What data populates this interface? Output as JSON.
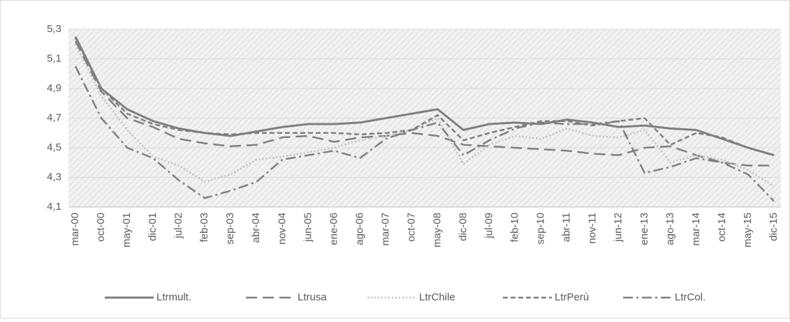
{
  "chart_data": {
    "type": "line",
    "categories": [
      "mar-00",
      "oct-00",
      "may-01",
      "dic-01",
      "jul-02",
      "feb-03",
      "sep-03",
      "abr-04",
      "nov-04",
      "jun-05",
      "ene-06",
      "ago-06",
      "mar-07",
      "oct-07",
      "may-08",
      "dic-08",
      "jul-09",
      "feb-10",
      "sep-10",
      "abr-11",
      "nov-11",
      "jun-12",
      "ene-13",
      "ago-13",
      "mar-14",
      "oct-14",
      "may-15",
      "dic-15"
    ],
    "series": [
      {
        "name": "Ltrmult.",
        "color": "#7f7f7f",
        "dash": "none",
        "width": 3,
        "values": [
          5.25,
          4.9,
          4.76,
          4.68,
          4.63,
          4.6,
          4.58,
          4.61,
          4.64,
          4.66,
          4.66,
          4.67,
          4.7,
          4.73,
          4.76,
          4.62,
          4.66,
          4.67,
          4.66,
          4.69,
          4.67,
          4.64,
          4.65,
          4.63,
          4.62,
          4.56,
          4.5,
          4.45
        ]
      },
      {
        "name": "Ltrusa",
        "color": "#7f7f7f",
        "dash": "16 8",
        "width": 2.5,
        "values": [
          5.22,
          4.88,
          4.7,
          4.64,
          4.56,
          4.53,
          4.51,
          4.52,
          4.57,
          4.58,
          4.54,
          4.57,
          4.58,
          4.6,
          4.58,
          4.52,
          4.51,
          4.5,
          4.49,
          4.48,
          4.46,
          4.45,
          4.5,
          4.51,
          4.45,
          4.4,
          4.38,
          4.38
        ]
      },
      {
        "name": "LtrChile",
        "color": "#bfbfbf",
        "dash": "2 3",
        "width": 2.5,
        "values": [
          5.2,
          4.85,
          4.62,
          4.44,
          4.38,
          4.27,
          4.32,
          4.42,
          4.44,
          4.47,
          4.5,
          4.55,
          4.58,
          4.62,
          4.7,
          4.39,
          4.52,
          4.58,
          4.56,
          4.63,
          4.58,
          4.57,
          4.62,
          4.4,
          4.45,
          4.42,
          4.35,
          4.24
        ]
      },
      {
        "name": "LtrPerú",
        "color": "#7f7f7f",
        "dash": "7 4",
        "width": 2.5,
        "values": [
          5.24,
          4.9,
          4.73,
          4.66,
          4.62,
          4.6,
          4.59,
          4.6,
          4.6,
          4.6,
          4.6,
          4.59,
          4.6,
          4.62,
          4.72,
          4.55,
          4.6,
          4.64,
          4.68,
          4.68,
          4.65,
          4.68,
          4.7,
          4.52,
          4.6,
          4.57,
          4.5,
          4.45
        ]
      },
      {
        "name": "LtrCol.",
        "color": "#7f7f7f",
        "dash": "14 5 3 5",
        "width": 2.5,
        "values": [
          5.05,
          4.7,
          4.5,
          4.43,
          4.28,
          4.16,
          4.21,
          4.27,
          4.42,
          4.45,
          4.48,
          4.43,
          4.56,
          4.62,
          4.67,
          4.45,
          4.55,
          4.63,
          4.67,
          4.66,
          4.66,
          4.68,
          4.33,
          4.37,
          4.43,
          4.4,
          4.32,
          4.14
        ]
      }
    ],
    "ylim": [
      4.1,
      5.3
    ],
    "yticks": [
      {
        "value": 4.1,
        "label": "4,1"
      },
      {
        "value": 4.3,
        "label": "4,3"
      },
      {
        "value": 4.5,
        "label": "4,5"
      },
      {
        "value": 4.7,
        "label": "4,7"
      },
      {
        "value": 4.9,
        "label": "4,9"
      },
      {
        "value": 5.1,
        "label": "5,1"
      },
      {
        "value": 5.3,
        "label": "5,3"
      }
    ],
    "grid": true,
    "legend": "bottom"
  }
}
